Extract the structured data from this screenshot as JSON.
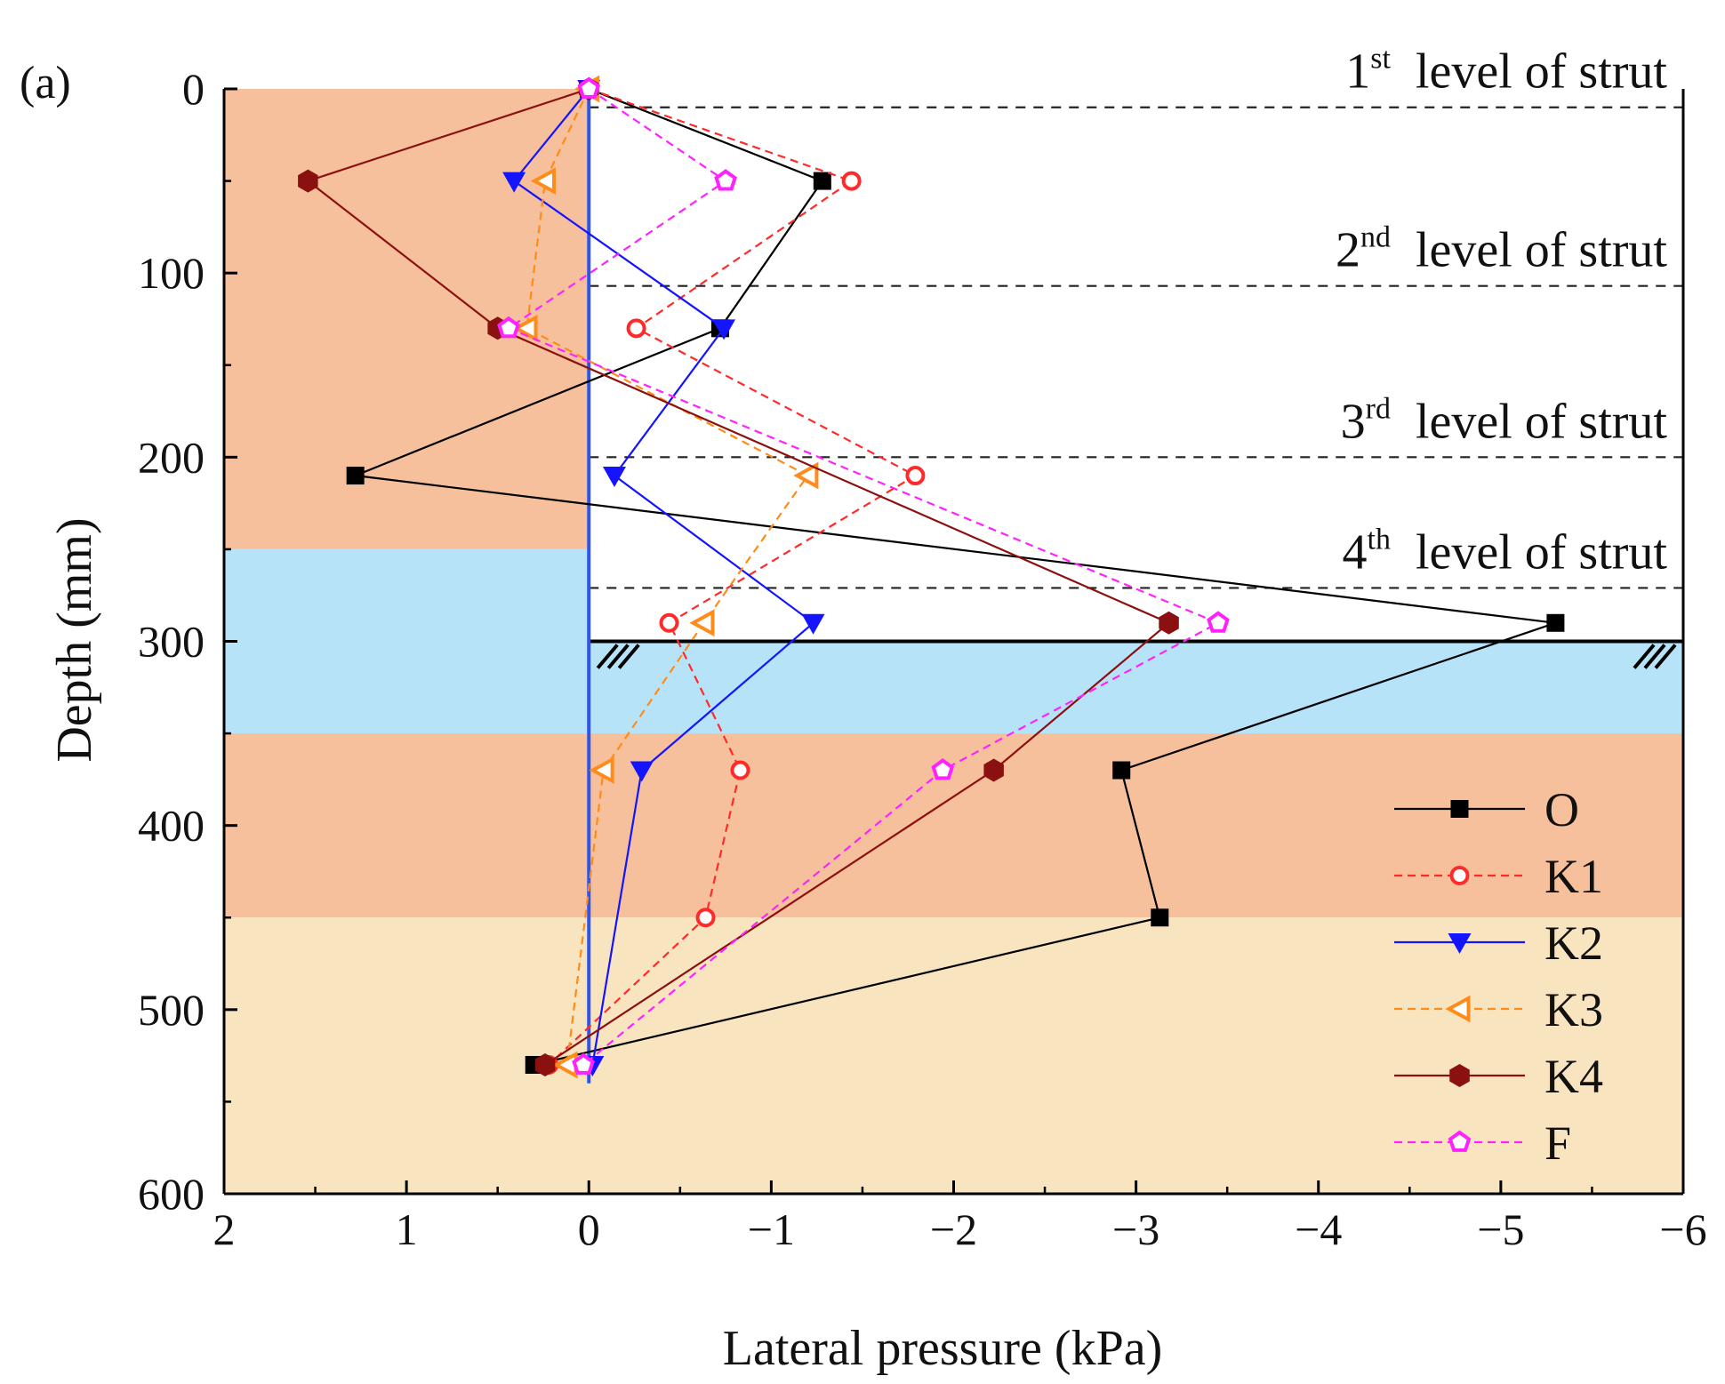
{
  "chart_data": {
    "type": "line",
    "panel_label": "(a)",
    "xlabel": "Lateral pressure (kPa)",
    "ylabel": "Depth (mm)",
    "xlim": [
      2,
      -6
    ],
    "ylim": [
      600,
      0
    ],
    "x_ticks": [
      2,
      1,
      0,
      -1,
      -2,
      -3,
      -4,
      -5,
      -6
    ],
    "x_tick_labels": [
      "2",
      "1",
      "0",
      "−1",
      "−2",
      "−3",
      "−4",
      "−5",
      "−6"
    ],
    "y_ticks": [
      0,
      100,
      200,
      300,
      400,
      500,
      600
    ],
    "y_tick_labels": [
      "0",
      "100",
      "200",
      "300",
      "400",
      "500",
      "600"
    ],
    "soil_layers": [
      {
        "from": 0,
        "to": 250,
        "color": "#f5c09b",
        "x_from": 2,
        "x_to": 0
      },
      {
        "from": 250,
        "to": 350,
        "color": "#b7e3f9",
        "x_from": 2,
        "x_to": 0
      },
      {
        "from": 300,
        "to": 350,
        "color": "#b7e3f9",
        "x_from": 0,
        "x_to": -6
      },
      {
        "from": 350,
        "to": 450,
        "color": "#f5c09b",
        "x_from": 2,
        "x_to": -6
      },
      {
        "from": 450,
        "to": 600,
        "color": "#f9e4c0",
        "x_from": 2,
        "x_to": -6
      }
    ],
    "wall": {
      "x": 0,
      "from": 0,
      "to": 540,
      "color": "#2f55e8"
    },
    "excavation_bottom": {
      "depth": 300,
      "x_from": 0,
      "x_to": -6
    },
    "strut_levels": [
      {
        "depth": 10,
        "ordinal": "1",
        "suffix": "st",
        "text": "level of strut"
      },
      {
        "depth": 107,
        "ordinal": "2",
        "suffix": "nd",
        "text": "level of strut"
      },
      {
        "depth": 200,
        "ordinal": "3",
        "suffix": "rd",
        "text": "level of strut"
      },
      {
        "depth": 271,
        "ordinal": "4",
        "suffix": "th",
        "text": "level of strut"
      }
    ],
    "series": [
      {
        "name": "O",
        "color": "#000000",
        "dash": false,
        "marker": "square",
        "points": [
          [
            0,
            0
          ],
          [
            -1.28,
            50
          ],
          [
            -0.72,
            130
          ],
          [
            1.28,
            210
          ],
          [
            -5.3,
            290
          ],
          [
            -2.92,
            370
          ],
          [
            -3.13,
            450
          ],
          [
            0.3,
            530
          ]
        ]
      },
      {
        "name": "K1",
        "color": "#ff2a2a",
        "dash": true,
        "marker": "circle",
        "points": [
          [
            0,
            0
          ],
          [
            -1.44,
            50
          ],
          [
            -0.26,
            130
          ],
          [
            -1.79,
            210
          ],
          [
            -0.44,
            290
          ],
          [
            -0.83,
            370
          ],
          [
            -0.64,
            450
          ],
          [
            0.22,
            530
          ]
        ]
      },
      {
        "name": "K2",
        "color": "#1414ff",
        "dash": false,
        "marker": "triangle-down",
        "points": [
          [
            0,
            0
          ],
          [
            0.41,
            50
          ],
          [
            -0.74,
            130
          ],
          [
            -0.14,
            210
          ],
          [
            -1.23,
            290
          ],
          [
            -0.29,
            370
          ],
          [
            -0.02,
            530
          ]
        ]
      },
      {
        "name": "K3",
        "color": "#ff8c1a",
        "dash": true,
        "marker": "triangle-left",
        "points": [
          [
            0,
            0
          ],
          [
            0.24,
            50
          ],
          [
            0.34,
            130
          ],
          [
            -1.2,
            210
          ],
          [
            -0.63,
            290
          ],
          [
            -0.08,
            370
          ],
          [
            0.12,
            530
          ]
        ]
      },
      {
        "name": "K4",
        "color": "#8b1010",
        "dash": false,
        "marker": "hexagon",
        "points": [
          [
            0,
            0
          ],
          [
            1.54,
            50
          ],
          [
            0.5,
            130
          ],
          [
            -3.18,
            290
          ],
          [
            -2.22,
            370
          ],
          [
            0.24,
            530
          ]
        ]
      },
      {
        "name": "F",
        "color": "#ff22ff",
        "dash": true,
        "marker": "pentagon",
        "points": [
          [
            0,
            0
          ],
          [
            -0.75,
            50
          ],
          [
            0.44,
            130
          ],
          [
            -3.45,
            290
          ],
          [
            -1.94,
            370
          ],
          [
            0.03,
            530
          ]
        ]
      }
    ],
    "legend": {
      "position": "bottom-right"
    }
  }
}
